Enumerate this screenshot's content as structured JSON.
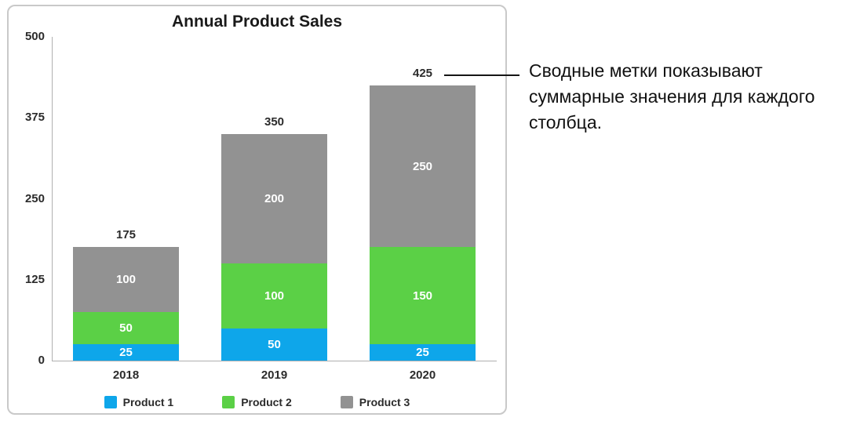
{
  "chart_data": {
    "type": "bar",
    "stacked": true,
    "title": "Annual Product Sales",
    "categories": [
      "2018",
      "2019",
      "2020"
    ],
    "series": [
      {
        "name": "Product 1",
        "color": "#0ea6ea",
        "values": [
          25,
          50,
          25
        ]
      },
      {
        "name": "Product 2",
        "color": "#5bd046",
        "values": [
          50,
          100,
          150
        ]
      },
      {
        "name": "Product 3",
        "color": "#929292",
        "values": [
          100,
          200,
          250
        ]
      }
    ],
    "totals": [
      175,
      350,
      425
    ],
    "y_ticks": [
      0,
      125,
      250,
      375,
      500
    ],
    "ylim": [
      0,
      500
    ],
    "xlabel": "",
    "ylabel": "",
    "grid": false,
    "legend_position": "bottom"
  },
  "annotation": {
    "text": "Сводные метки показывают суммарные значения для каждого столбца."
  }
}
